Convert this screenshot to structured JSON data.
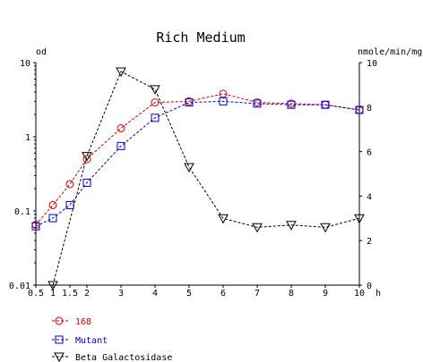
{
  "chart_data": {
    "type": "line",
    "title": "Rich Medium",
    "xlabel": "h",
    "ylabel_left": "od",
    "ylabel_right": "nmole/min/mg",
    "left_axis": {
      "scale": "log",
      "range": [
        0.01,
        10
      ],
      "ticks": [
        0.01,
        0.1,
        1,
        10
      ],
      "tick_labels": [
        "0.01",
        "0.1",
        "1",
        "10"
      ]
    },
    "right_axis": {
      "scale": "linear",
      "range": [
        0,
        10
      ],
      "ticks": [
        0,
        2,
        4,
        6,
        8,
        10
      ],
      "tick_labels": [
        "0",
        "2",
        "4",
        "6",
        "8",
        "10"
      ]
    },
    "x_axis": {
      "range": [
        0.5,
        10
      ],
      "ticks": [
        0.5,
        1,
        1.5,
        2,
        3,
        4,
        5,
        6,
        7,
        8,
        9,
        10
      ],
      "tick_labels": [
        "0.5",
        "1",
        "1.5",
        "2",
        "3",
        "4",
        "5",
        "6",
        "7",
        "8",
        "9",
        "10"
      ]
    },
    "grid": false,
    "legend_position": "bottom-left",
    "series": [
      {
        "name": "168",
        "axis": "left",
        "color": "#cc0000",
        "marker": "circle",
        "x": [
          0.5,
          1,
          1.5,
          2,
          3,
          4,
          5,
          6,
          7,
          8,
          9,
          10
        ],
        "y": [
          0.065,
          0.12,
          0.23,
          0.5,
          1.3,
          2.9,
          3.0,
          3.8,
          2.9,
          2.8,
          2.7,
          2.3
        ]
      },
      {
        "name": "Mutant",
        "axis": "left",
        "color": "#0000cc",
        "marker": "square",
        "x": [
          0.5,
          1,
          1.5,
          2,
          3,
          4,
          5,
          6,
          7,
          8,
          9,
          10
        ],
        "y": [
          0.062,
          0.08,
          0.12,
          0.24,
          0.75,
          1.8,
          2.9,
          3.0,
          2.8,
          2.7,
          2.7,
          2.3
        ]
      },
      {
        "name": "Beta Galactosidase",
        "axis": "right",
        "color": "#000000",
        "marker": "triangle-down",
        "x": [
          1,
          2,
          3,
          4,
          5,
          6,
          7,
          8,
          9,
          10
        ],
        "y": [
          0,
          5.8,
          9.6,
          8.8,
          5.3,
          3.0,
          2.6,
          2.7,
          2.6,
          3.0
        ]
      }
    ]
  }
}
